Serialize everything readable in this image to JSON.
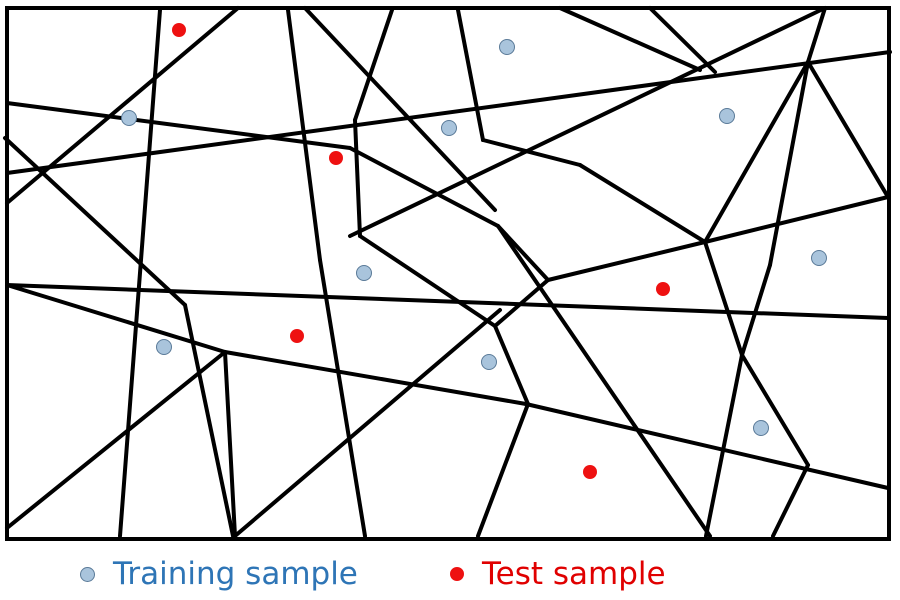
{
  "colors": {
    "background": "#ffffff",
    "lines": "#000000",
    "training_fill": "#a9c4dc",
    "training_stroke": "#5a7a98",
    "test_fill": "#ee1111",
    "training_text": "#2e75b6",
    "test_text": "#e00000"
  },
  "legend": {
    "training_label": "Training sample",
    "test_label": "Test sample"
  }
}
